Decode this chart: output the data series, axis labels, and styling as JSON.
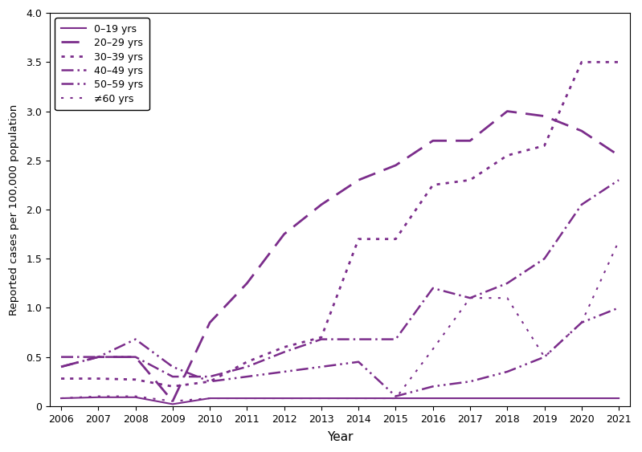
{
  "years": [
    2006,
    2007,
    2008,
    2009,
    2010,
    2011,
    2012,
    2013,
    2014,
    2015,
    2016,
    2017,
    2018,
    2019,
    2020,
    2021
  ],
  "color": "#7B2D8B",
  "series": {
    "0–19 yrs": {
      "values": [
        0.08,
        0.09,
        0.09,
        0.02,
        0.08,
        0.08,
        0.08,
        0.08,
        0.08,
        0.08,
        0.08,
        0.08,
        0.08,
        0.08,
        0.08,
        0.08
      ]
    },
    "20–29 yrs": {
      "values": [
        0.4,
        0.5,
        0.5,
        0.05,
        0.85,
        1.25,
        1.75,
        2.05,
        2.3,
        2.45,
        2.7,
        2.7,
        3.0,
        2.95,
        2.8,
        2.55
      ]
    },
    "30–39 yrs": {
      "values": [
        0.28,
        0.28,
        0.27,
        0.2,
        0.25,
        0.45,
        0.6,
        0.7,
        1.7,
        1.7,
        2.25,
        2.3,
        2.55,
        2.65,
        3.5,
        3.5
      ]
    },
    "40–49 yrs": {
      "values": [
        0.5,
        0.5,
        0.5,
        0.3,
        0.3,
        0.4,
        0.55,
        0.68,
        0.68,
        0.68,
        1.2,
        1.1,
        1.25,
        1.5,
        2.05,
        2.3
      ]
    },
    "50–59 yrs": {
      "values": [
        0.4,
        0.5,
        0.68,
        0.4,
        0.25,
        0.3,
        0.35,
        0.4,
        0.45,
        0.1,
        0.2,
        0.25,
        0.35,
        0.5,
        0.85,
        1.0
      ]
    },
    "≠60 yrs": {
      "values": [
        0.08,
        0.1,
        0.1,
        0.05,
        0.08,
        0.08,
        0.08,
        0.08,
        0.08,
        0.08,
        0.58,
        1.1,
        1.1,
        0.5,
        0.85,
        1.68
      ]
    }
  },
  "xlabel": "Year",
  "ylabel": "Reported cases per 100,000 population",
  "ylim": [
    0.0,
    4.0
  ],
  "xlim": [
    2006,
    2021
  ],
  "yticks": [
    0.0,
    0.5,
    1.0,
    1.5,
    2.0,
    2.5,
    3.0,
    3.5,
    4.0
  ],
  "xticks": [
    2006,
    2007,
    2008,
    2009,
    2010,
    2011,
    2012,
    2013,
    2014,
    2015,
    2016,
    2017,
    2018,
    2019,
    2020,
    2021
  ],
  "background_color": "#ffffff",
  "legend_loc": "upper left"
}
